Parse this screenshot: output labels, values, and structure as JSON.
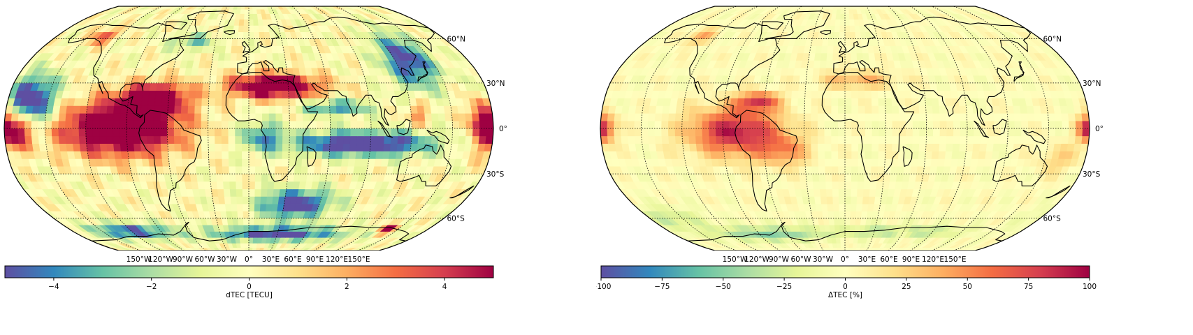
{
  "panels": [
    {
      "id": "left",
      "colorbar": {
        "label": "dTEC [TECU]",
        "min": -5,
        "max": 5,
        "ticks": [
          {
            "value": -4,
            "label": "−4"
          },
          {
            "value": -2,
            "label": "−2"
          },
          {
            "value": 0,
            "label": "0"
          },
          {
            "value": 2,
            "label": "2"
          },
          {
            "value": 4,
            "label": "4"
          }
        ]
      }
    },
    {
      "id": "right",
      "colorbar": {
        "label": "ΔTEC [%]",
        "min": -100,
        "max": 100,
        "ticks": [
          {
            "value": -100,
            "label": "−100"
          },
          {
            "value": -75,
            "label": "−75"
          },
          {
            "value": -50,
            "label": "−50"
          },
          {
            "value": -25,
            "label": "−25"
          },
          {
            "value": 0,
            "label": "0"
          },
          {
            "value": 25,
            "label": "25"
          },
          {
            "value": 50,
            "label": "50"
          },
          {
            "value": 75,
            "label": "75"
          },
          {
            "value": 100,
            "label": "100"
          }
        ]
      }
    }
  ],
  "map": {
    "projection": "Robinson",
    "colormap": "Spectral_r",
    "gridlines": "dotted",
    "latitude_labels": [
      {
        "lat": 60,
        "label": "60°N"
      },
      {
        "lat": 30,
        "label": "30°N"
      },
      {
        "lat": 0,
        "label": "0°"
      },
      {
        "lat": -30,
        "label": "30°S"
      },
      {
        "lat": -60,
        "label": "60°S"
      }
    ],
    "longitude_labels": [
      {
        "lon": -150,
        "label": "150°W"
      },
      {
        "lon": -120,
        "label": "120°W"
      },
      {
        "lon": -90,
        "label": "90°W"
      },
      {
        "lon": -60,
        "label": "60°W"
      },
      {
        "lon": -30,
        "label": "30°W"
      },
      {
        "lon": 0,
        "label": "0°"
      },
      {
        "lon": 30,
        "label": "30°E"
      },
      {
        "lon": 60,
        "label": "60°E"
      },
      {
        "lon": 90,
        "label": "90°E"
      },
      {
        "lon": 120,
        "label": "120°E"
      },
      {
        "lon": 150,
        "label": "150°E"
      }
    ],
    "colors": {
      "land_outline": "#000000",
      "grid": "#000000",
      "spectral_r": [
        "#5e4fa2",
        "#3288bd",
        "#66c2a5",
        "#abdda4",
        "#e6f598",
        "#ffffbf",
        "#fee08b",
        "#fdae61",
        "#f46d43",
        "#d53e4f",
        "#9e0142"
      ]
    }
  }
}
